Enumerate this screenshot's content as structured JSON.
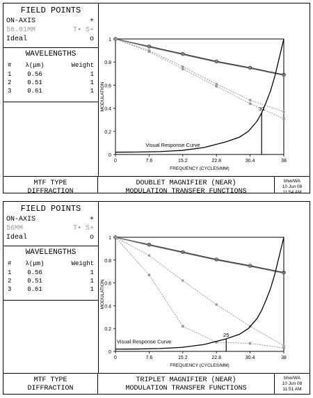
{
  "charts": [
    {
      "field_points": {
        "title": "FIELD POINTS",
        "rows": [
          {
            "label": "ON-AXIS",
            "symbol": "+"
          },
          {
            "label": "56.01MM",
            "symbol": "T▪ S∗"
          },
          {
            "label": "Ideal",
            "symbol": "o"
          }
        ]
      },
      "wavelengths": {
        "title": "WAVELENGTHS",
        "headers": [
          "#",
          "λ(μm)",
          "Weight"
        ],
        "rows": [
          [
            "1",
            "0.56",
            "1"
          ],
          [
            "2",
            "0.51",
            "1"
          ],
          [
            "3",
            "0.61",
            "1"
          ]
        ]
      },
      "footer": {
        "left": [
          "MTF TYPE",
          "DIFFRACTION"
        ],
        "middle": [
          "DOUBLET MAGNIFIER (NEAR)",
          "MODULATION TRANSFER FUNCTIONS"
        ],
        "right": [
          "bhw/WA",
          "10 Jun 08",
          "11:54 AM"
        ]
      },
      "chart_data": {
        "type": "line",
        "xlabel": "FREQUENCY (CYCLES/MM)",
        "ylabel": "MODULATION",
        "xlim": [
          0,
          38
        ],
        "ylim": [
          0,
          1
        ],
        "xticks": [
          0,
          7.6,
          15.2,
          22.8,
          30.4,
          38
        ],
        "yticks": [
          0,
          0.2,
          0.4,
          0.6,
          0.8,
          1
        ],
        "annotations": [
          {
            "text": "Visual Response Curve"
          },
          {
            "text": "33",
            "x": 33
          }
        ],
        "series": [
          {
            "line": "ideal",
            "marker": "circle",
            "x": [
              0,
              7.6,
              15.2,
              22.8,
              30.4,
              38
            ],
            "y": [
              1,
              0.935,
              0.87,
              0.805,
              0.75,
              0.69
            ]
          },
          {
            "line": "on-axis",
            "marker": "square",
            "x": [
              0,
              7.6,
              15.2,
              22.8,
              30.4,
              38
            ],
            "y": [
              1,
              0.93,
              0.865,
              0.8,
              0.745,
              0.685
            ]
          },
          {
            "line": "field-T",
            "marker": "square",
            "x": [
              0,
              7.6,
              15.2,
              22.8,
              30.4,
              38
            ],
            "y": [
              1,
              0.89,
              0.74,
              0.59,
              0.44,
              0.31
            ]
          },
          {
            "line": "field-S",
            "marker": "star",
            "x": [
              0,
              7.6,
              15.2,
              22.8,
              30.4,
              38
            ],
            "y": [
              1,
              0.9,
              0.76,
              0.61,
              0.47,
              0.37
            ]
          },
          {
            "line": "visual-response",
            "marker": "none",
            "x": [
              0,
              5,
              10,
              15,
              20,
              25,
              28,
              30,
              32,
              33,
              34,
              35,
              36,
              37,
              38
            ],
            "y": [
              0.02,
              0.021,
              0.025,
              0.035,
              0.06,
              0.11,
              0.15,
              0.2,
              0.29,
              0.36,
              0.45,
              0.55,
              0.68,
              0.84,
              1.0
            ]
          }
        ]
      }
    },
    {
      "field_points": {
        "title": "FIELD POINTS",
        "rows": [
          {
            "label": "ON-AXIS",
            "symbol": "+"
          },
          {
            "label": "56MM",
            "symbol": "T▪ S∗"
          },
          {
            "label": "Ideal",
            "symbol": "o"
          }
        ]
      },
      "wavelengths": {
        "title": "WAVELENGTHS",
        "headers": [
          "#",
          "λ(μm)",
          "Weight"
        ],
        "rows": [
          [
            "1",
            "0.56",
            "1"
          ],
          [
            "2",
            "0.51",
            "1"
          ],
          [
            "3",
            "0.61",
            "1"
          ]
        ]
      },
      "footer": {
        "left": [
          "MTF TYPE",
          "DIFFRACTION"
        ],
        "middle": [
          "TRIPLET MAGNIFIER (NEAR)",
          "MODULATION TRANSFER FUNCTIONS"
        ],
        "right": [
          "bhw/WA",
          "10 Jun 08",
          "11:51 AM"
        ]
      },
      "chart_data": {
        "type": "line",
        "xlabel": "FREQUENCY (CYCLES/MM)",
        "ylabel": "MODULATION",
        "xlim": [
          0,
          38
        ],
        "ylim": [
          0,
          1
        ],
        "xticks": [
          0,
          7.6,
          15.2,
          22.8,
          30.4,
          38
        ],
        "yticks": [
          0,
          0.2,
          0.4,
          0.6,
          0.8,
          1
        ],
        "annotations": [
          {
            "text": "Visual Response Curve"
          },
          {
            "text": "25",
            "x": 25
          }
        ],
        "series": [
          {
            "line": "ideal",
            "marker": "circle",
            "x": [
              0,
              7.6,
              15.2,
              22.8,
              30.4,
              38
            ],
            "y": [
              1,
              0.935,
              0.87,
              0.805,
              0.75,
              0.69
            ]
          },
          {
            "line": "on-axis",
            "marker": "square",
            "x": [
              0,
              7.6,
              15.2,
              22.8,
              30.4,
              38
            ],
            "y": [
              1,
              0.93,
              0.865,
              0.8,
              0.745,
              0.685
            ]
          },
          {
            "line": "field-S",
            "marker": "star",
            "x": [
              0,
              7.6,
              15.2,
              22.8,
              30.4,
              38
            ],
            "y": [
              1,
              0.84,
              0.62,
              0.41,
              0.22,
              0.05
            ]
          },
          {
            "line": "field-T",
            "marker": "square",
            "x": [
              0,
              7.6,
              15.2,
              22.8,
              30.4,
              38
            ],
            "y": [
              1,
              0.67,
              0.22,
              0.08,
              0.07,
              0.03
            ]
          },
          {
            "line": "visual-response",
            "marker": "none",
            "x": [
              0,
              5,
              10,
              15,
              20,
              25,
              28,
              30,
              32,
              33,
              34,
              35,
              36,
              37,
              38
            ],
            "y": [
              0.02,
              0.021,
              0.025,
              0.035,
              0.06,
              0.11,
              0.15,
              0.2,
              0.29,
              0.36,
              0.45,
              0.55,
              0.68,
              0.84,
              1.0
            ]
          }
        ]
      }
    }
  ]
}
